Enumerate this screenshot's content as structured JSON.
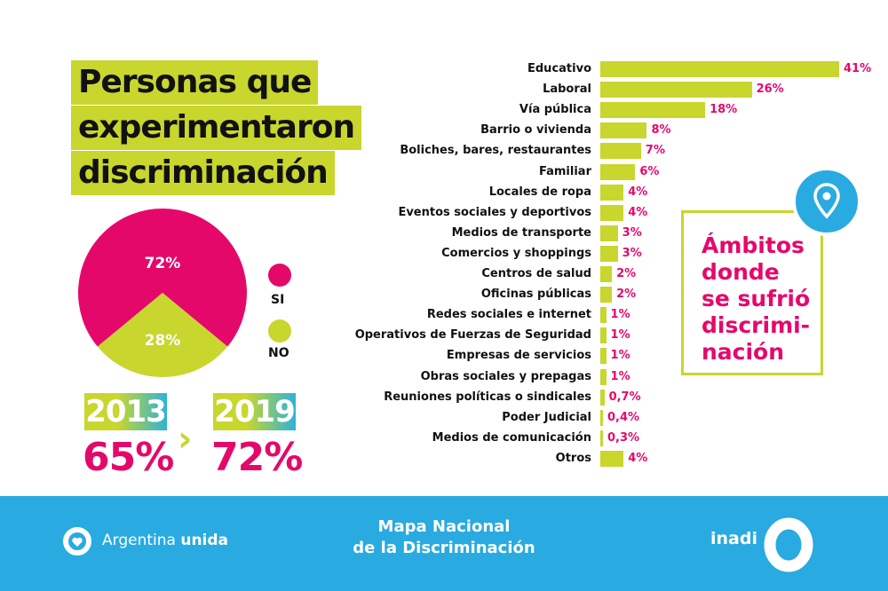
{
  "title": [
    "Personas que",
    "experimentaron",
    "discriminación"
  ],
  "colors": {
    "accent_green": "#c8d62e",
    "accent_pink": "#e5086b",
    "brand_blue": "#29aae1"
  },
  "chart_data": [
    {
      "type": "pie",
      "slices": [
        {
          "label": "SI",
          "value": 72,
          "display": "72%",
          "color": "#e5086b"
        },
        {
          "label": "NO",
          "value": 28,
          "display": "28%",
          "color": "#c8d62e"
        }
      ],
      "legend": "right"
    },
    {
      "type": "bar",
      "orientation": "horizontal",
      "title": "Ámbitos donde se sufrió discriminación",
      "categories": [
        "Educativo",
        "Laboral",
        "Vía pública",
        "Barrio o vivienda",
        "Boliches, bares, restaurantes",
        "Familiar",
        "Locales de ropa",
        "Eventos sociales y deportivos",
        "Medios de transporte",
        "Comercios y shoppings",
        "Centros de salud",
        "Oficinas públicas",
        "Redes sociales e internet",
        "Operativos de Fuerzas de Seguridad",
        "Empresas de servicios",
        "Obras sociales y prepagas",
        "Reuniones políticas o sindicales",
        "Poder Judicial",
        "Medios de comunicación",
        "Otros"
      ],
      "values": [
        41,
        26,
        18,
        8,
        7,
        6,
        4,
        4,
        3,
        3,
        2,
        2,
        1,
        1,
        1,
        1,
        0.7,
        0.4,
        0.3,
        4
      ],
      "labels": [
        "41%",
        "26%",
        "18%",
        "8%",
        "7%",
        "6%",
        "4%",
        "4%",
        "3%",
        "3%",
        "2%",
        "2%",
        "1%",
        "1%",
        "1%",
        "1%",
        "0,7%",
        "0,4%",
        "0,3%",
        "4%"
      ]
    }
  ],
  "comparison": {
    "year_a": "2013",
    "value_a": "65%",
    "year_b": "2019",
    "value_b": "72%"
  },
  "box_title": [
    "Ámbitos",
    "donde",
    "se sufrió",
    "discrimi-",
    "nación"
  ],
  "footer": {
    "left_a": "Argentina ",
    "left_b": "unida",
    "center_1": "Mapa Nacional",
    "center_2": "de la Discriminación",
    "right": "inadi"
  }
}
